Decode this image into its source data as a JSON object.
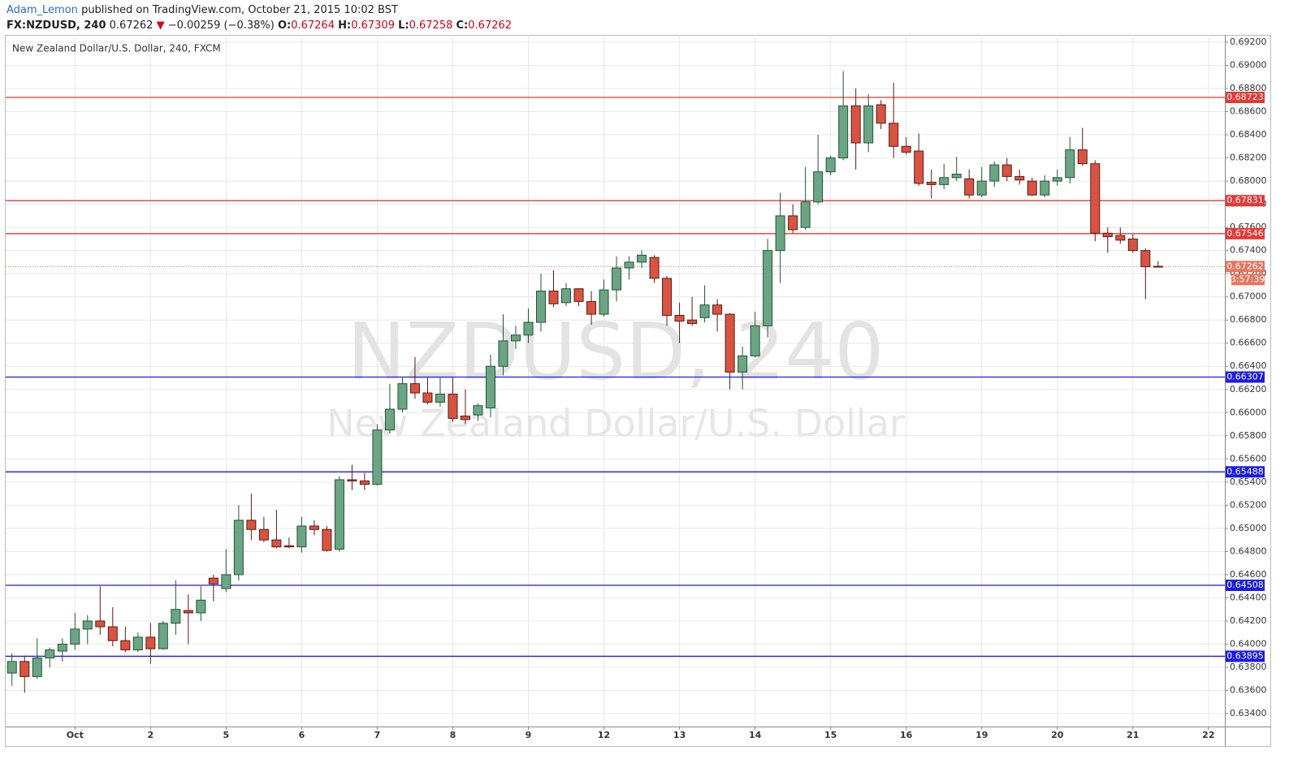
{
  "header": {
    "author": "Adam_Lemon",
    "published": "published on TradingView.com, October 21, 2015 10:02 BST",
    "symbol": "FX:NZDUSD, 240",
    "price": "0.67262",
    "change_arrow": "▼",
    "change": "−0.00259 (−0.38%)",
    "ohlc": [
      {
        "label": "O:",
        "value": "0.67264"
      },
      {
        "label": "H:",
        "value": "0.67309"
      },
      {
        "label": "L:",
        "value": "0.67258"
      },
      {
        "label": "C:",
        "value": "0.67262"
      }
    ]
  },
  "chart_data": {
    "type": "candlestick",
    "title": "New Zealand Dollar/U.S. Dollar, 240, FXCM",
    "watermark": [
      "NZDUSD, 240",
      "New Zealand Dollar/U.S. Dollar"
    ],
    "up_color": "#6ba583",
    "down_color": "#d75442",
    "open": [
      0.6375,
      0.6385,
      0.6372,
      0.6388,
      0.6394,
      0.64,
      0.6413,
      0.642,
      0.6415,
      0.6403,
      0.6395,
      0.6406,
      0.6396,
      0.6418,
      0.6429,
      0.6427,
      0.6457,
      0.6448,
      0.646,
      0.6507,
      0.6499,
      0.649,
      0.6485,
      0.6484,
      0.6502,
      0.6499,
      0.6482,
      0.6542,
      0.6541,
      0.6538,
      0.6585,
      0.6603,
      0.6625,
      0.6617,
      0.6609,
      0.6616,
      0.6597,
      0.6598,
      0.6604,
      0.664,
      0.6662,
      0.6667,
      0.6678,
      0.6705,
      0.6695,
      0.6707,
      0.6696,
      0.6685,
      0.6706,
      0.6725,
      0.673,
      0.6734,
      0.6716,
      0.6684,
      0.668,
      0.6682,
      0.6693,
      0.6685,
      0.6635,
      0.6649,
      0.6675,
      0.674,
      0.677,
      0.676,
      0.6782,
      0.6808,
      0.682,
      0.6865,
      0.6833,
      0.6866,
      0.685,
      0.683,
      0.6826,
      0.6799,
      0.6797,
      0.6803,
      0.6802,
      0.6788,
      0.68,
      0.6814,
      0.6804,
      0.68,
      0.6788,
      0.68,
      0.6803,
      0.6827,
      0.6815,
      0.6755,
      0.6753,
      0.675,
      0.674,
      0.67264
    ],
    "high": [
      0.6392,
      0.639,
      0.6405,
      0.6397,
      0.6405,
      0.6427,
      0.6425,
      0.645,
      0.6432,
      0.6415,
      0.641,
      0.6418,
      0.642,
      0.6455,
      0.6443,
      0.645,
      0.646,
      0.6482,
      0.652,
      0.653,
      0.651,
      0.6516,
      0.6492,
      0.651,
      0.6507,
      0.6502,
      0.6545,
      0.6555,
      0.6548,
      0.659,
      0.6625,
      0.663,
      0.6648,
      0.663,
      0.663,
      0.663,
      0.662,
      0.6608,
      0.665,
      0.6685,
      0.6675,
      0.669,
      0.672,
      0.6723,
      0.6712,
      0.6707,
      0.6705,
      0.6715,
      0.6735,
      0.6735,
      0.674,
      0.6736,
      0.6718,
      0.6695,
      0.67,
      0.671,
      0.6698,
      0.6686,
      0.6657,
      0.6687,
      0.675,
      0.679,
      0.678,
      0.6812,
      0.684,
      0.6822,
      0.6895,
      0.688,
      0.6875,
      0.687,
      0.6885,
      0.6838,
      0.6841,
      0.681,
      0.6815,
      0.6821,
      0.681,
      0.6812,
      0.6817,
      0.682,
      0.681,
      0.6803,
      0.6805,
      0.681,
      0.6838,
      0.6846,
      0.6818,
      0.676,
      0.676,
      0.6754,
      0.6742,
      0.67309
    ],
    "low": [
      0.6364,
      0.6358,
      0.637,
      0.638,
      0.6385,
      0.6395,
      0.64,
      0.6408,
      0.6398,
      0.6393,
      0.6393,
      0.6383,
      0.6395,
      0.6408,
      0.64,
      0.642,
      0.6437,
      0.6445,
      0.6455,
      0.649,
      0.6488,
      0.6483,
      0.6483,
      0.6479,
      0.6494,
      0.648,
      0.648,
      0.6533,
      0.6533,
      0.6537,
      0.6582,
      0.66,
      0.6612,
      0.6607,
      0.6605,
      0.6592,
      0.659,
      0.6593,
      0.6596,
      0.6632,
      0.6655,
      0.666,
      0.667,
      0.6691,
      0.6692,
      0.6692,
      0.6676,
      0.6683,
      0.6696,
      0.6715,
      0.6725,
      0.6712,
      0.6675,
      0.666,
      0.6675,
      0.6678,
      0.667,
      0.662,
      0.662,
      0.6648,
      0.6665,
      0.6712,
      0.6755,
      0.6758,
      0.678,
      0.6805,
      0.6818,
      0.681,
      0.6825,
      0.6845,
      0.682,
      0.6823,
      0.6796,
      0.6785,
      0.6793,
      0.68,
      0.6785,
      0.6786,
      0.6795,
      0.68,
      0.6797,
      0.6787,
      0.6786,
      0.6796,
      0.6798,
      0.6813,
      0.6748,
      0.6738,
      0.6746,
      0.6738,
      0.6698,
      0.67258
    ],
    "close": [
      0.6385,
      0.6372,
      0.6388,
      0.6395,
      0.64,
      0.6413,
      0.642,
      0.6415,
      0.6403,
      0.6395,
      0.6406,
      0.6396,
      0.6418,
      0.643,
      0.6427,
      0.6438,
      0.6452,
      0.646,
      0.6507,
      0.6499,
      0.649,
      0.6484,
      0.6484,
      0.6502,
      0.6499,
      0.6481,
      0.6542,
      0.6541,
      0.6538,
      0.6585,
      0.6603,
      0.6625,
      0.6617,
      0.6609,
      0.6616,
      0.6595,
      0.6594,
      0.6606,
      0.664,
      0.6662,
      0.6667,
      0.6678,
      0.6705,
      0.6694,
      0.6707,
      0.6696,
      0.6685,
      0.6706,
      0.6725,
      0.673,
      0.6736,
      0.6716,
      0.6684,
      0.6679,
      0.6677,
      0.6693,
      0.6685,
      0.6635,
      0.6649,
      0.6675,
      0.674,
      0.677,
      0.6758,
      0.6782,
      0.6808,
      0.682,
      0.6865,
      0.6833,
      0.6865,
      0.685,
      0.683,
      0.6825,
      0.6798,
      0.6797,
      0.6803,
      0.6806,
      0.6788,
      0.68,
      0.6814,
      0.6804,
      0.6801,
      0.6788,
      0.68,
      0.6803,
      0.6827,
      0.6815,
      0.6755,
      0.6752,
      0.6749,
      0.674,
      0.6726,
      0.67262
    ],
    "xlim": [
      -0.5,
      96.3
    ],
    "xticks": [
      {
        "value": 5,
        "label": "Oct"
      },
      {
        "value": 11,
        "label": "2"
      },
      {
        "value": 17,
        "label": "5"
      },
      {
        "value": 23,
        "label": "6"
      },
      {
        "value": 29,
        "label": "7"
      },
      {
        "value": 35,
        "label": "8"
      },
      {
        "value": 41,
        "label": "9"
      },
      {
        "value": 47,
        "label": "12"
      },
      {
        "value": 53,
        "label": "13"
      },
      {
        "value": 59,
        "label": "14"
      },
      {
        "value": 65,
        "label": "15"
      },
      {
        "value": 71,
        "label": "16"
      },
      {
        "value": 77,
        "label": "19"
      },
      {
        "value": 83,
        "label": "20"
      },
      {
        "value": 89,
        "label": "21"
      },
      {
        "value": 95,
        "label": "22"
      }
    ],
    "ylim": [
      0.63288,
      0.69263
    ],
    "yticks": [
      {
        "value": 0.634,
        "label": "0.63400"
      },
      {
        "value": 0.636,
        "label": "0.63600"
      },
      {
        "value": 0.638,
        "label": "0.63800"
      },
      {
        "value": 0.64,
        "label": "0.64000"
      },
      {
        "value": 0.642,
        "label": "0.64200"
      },
      {
        "value": 0.644,
        "label": "0.64400"
      },
      {
        "value": 0.646,
        "label": "0.64600"
      },
      {
        "value": 0.648,
        "label": "0.64800"
      },
      {
        "value": 0.65,
        "label": "0.65000"
      },
      {
        "value": 0.652,
        "label": "0.65200"
      },
      {
        "value": 0.654,
        "label": "0.65400"
      },
      {
        "value": 0.656,
        "label": "0.65600"
      },
      {
        "value": 0.658,
        "label": "0.65800"
      },
      {
        "value": 0.66,
        "label": "0.66000"
      },
      {
        "value": 0.662,
        "label": "0.66200"
      },
      {
        "value": 0.664,
        "label": "0.66400"
      },
      {
        "value": 0.666,
        "label": "0.66600"
      },
      {
        "value": 0.668,
        "label": "0.66800"
      },
      {
        "value": 0.67,
        "label": "0.67000"
      },
      {
        "value": 0.672,
        "label": "0.67200"
      },
      {
        "value": 0.674,
        "label": "0.67400"
      },
      {
        "value": 0.676,
        "label": "0.67600"
      },
      {
        "value": 0.678,
        "label": "0.67800"
      },
      {
        "value": 0.68,
        "label": "0.68000"
      },
      {
        "value": 0.682,
        "label": "0.68200"
      },
      {
        "value": 0.684,
        "label": "0.68400"
      },
      {
        "value": 0.686,
        "label": "0.68600"
      },
      {
        "value": 0.688,
        "label": "0.68800"
      },
      {
        "value": 0.69,
        "label": "0.69000"
      },
      {
        "value": 0.692,
        "label": "0.69200"
      }
    ],
    "grid": true,
    "levels": [
      {
        "value": 0.68723,
        "color": "#e53935"
      },
      {
        "value": 0.67831,
        "color": "#e53935"
      },
      {
        "value": 0.67546,
        "color": "#e53935"
      },
      {
        "value": 0.66307,
        "color": "#1a1ae6"
      },
      {
        "value": 0.65488,
        "color": "#1a1ae6"
      },
      {
        "value": 0.64508,
        "color": "#1a1ae6"
      },
      {
        "value": 0.63895,
        "color": "#1a1ae6"
      }
    ],
    "last_price": 0.67262,
    "countdown": "3:57:39",
    "last_color": "#e4775f"
  }
}
